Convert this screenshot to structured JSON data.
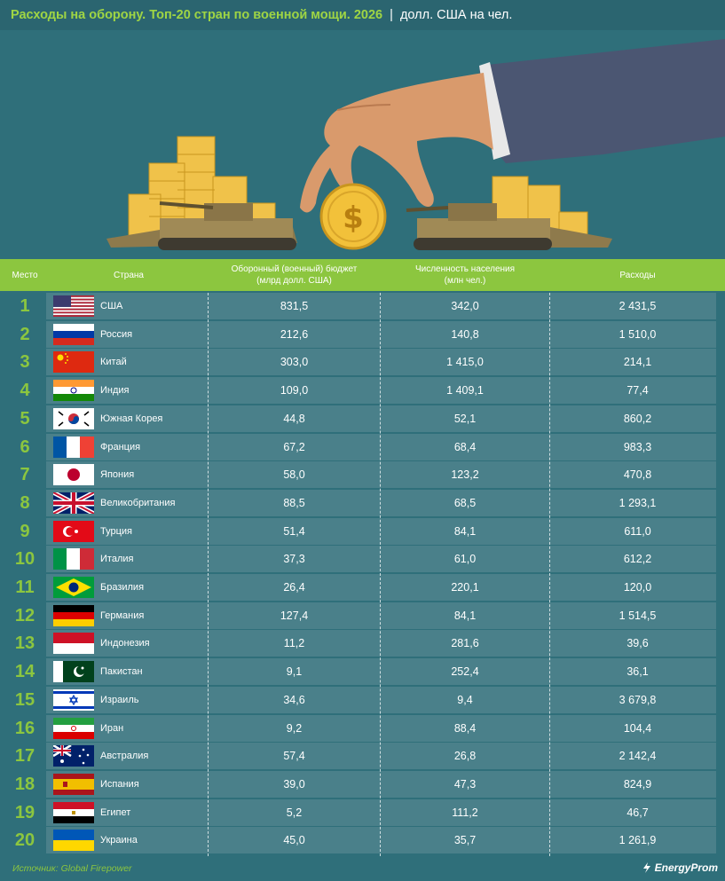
{
  "header": {
    "title": "Расходы на оборону. Топ-20 стран по военной мощи. 2026",
    "separator": "|",
    "unit": "долл. США на чел."
  },
  "columns": {
    "rank": "Место",
    "country": "Страна",
    "budget_line1": "Оборонный (военный) бюджет",
    "budget_line2": "(млрд долл. США)",
    "population_line1": "Численность населения",
    "population_line2": "(млн чел.)",
    "spending": "Расходы"
  },
  "colors": {
    "accent_green": "#8cc63f",
    "row_bg": "#4a808a",
    "page_bg": "#2f6f7a"
  },
  "chart_data": {
    "type": "table",
    "title": "Расходы на оборону. Топ-20 стран по военной мощи. 2026",
    "rows": [
      {
        "rank": "1",
        "flag": "us",
        "country": "США",
        "budget": "831,5",
        "population": "342,0",
        "spending": "2 431,5"
      },
      {
        "rank": "2",
        "flag": "ru",
        "country": "Россия",
        "budget": "212,6",
        "population": "140,8",
        "spending": "1 510,0"
      },
      {
        "rank": "3",
        "flag": "cn",
        "country": "Китай",
        "budget": "303,0",
        "population": "1 415,0",
        "spending": "214,1"
      },
      {
        "rank": "4",
        "flag": "in",
        "country": "Индия",
        "budget": "109,0",
        "population": "1 409,1",
        "spending": "77,4"
      },
      {
        "rank": "5",
        "flag": "kr",
        "country": "Южная Корея",
        "budget": "44,8",
        "population": "52,1",
        "spending": "860,2"
      },
      {
        "rank": "6",
        "flag": "fr",
        "country": "Франция",
        "budget": "67,2",
        "population": "68,4",
        "spending": "983,3"
      },
      {
        "rank": "7",
        "flag": "jp",
        "country": "Япония",
        "budget": "58,0",
        "population": "123,2",
        "spending": "470,8"
      },
      {
        "rank": "8",
        "flag": "gb",
        "country": "Великобритания",
        "budget": "88,5",
        "population": "68,5",
        "spending": "1 293,1"
      },
      {
        "rank": "9",
        "flag": "tr",
        "country": "Турция",
        "budget": "51,4",
        "population": "84,1",
        "spending": "611,0"
      },
      {
        "rank": "10",
        "flag": "it",
        "country": "Италия",
        "budget": "37,3",
        "population": "61,0",
        "spending": "612,2"
      },
      {
        "rank": "11",
        "flag": "br",
        "country": "Бразилия",
        "budget": "26,4",
        "population": "220,1",
        "spending": "120,0"
      },
      {
        "rank": "12",
        "flag": "de",
        "country": "Германия",
        "budget": "127,4",
        "population": "84,1",
        "spending": "1 514,5"
      },
      {
        "rank": "13",
        "flag": "id",
        "country": "Индонезия",
        "budget": "11,2",
        "population": "281,6",
        "spending": "39,6"
      },
      {
        "rank": "14",
        "flag": "pk",
        "country": "Пакистан",
        "budget": "9,1",
        "population": "252,4",
        "spending": "36,1"
      },
      {
        "rank": "15",
        "flag": "il",
        "country": "Израиль",
        "budget": "34,6",
        "population": "9,4",
        "spending": "3 679,8"
      },
      {
        "rank": "16",
        "flag": "ir",
        "country": "Иран",
        "budget": "9,2",
        "population": "88,4",
        "spending": "104,4"
      },
      {
        "rank": "17",
        "flag": "au",
        "country": "Австралия",
        "budget": "57,4",
        "population": "26,8",
        "spending": "2 142,4"
      },
      {
        "rank": "18",
        "flag": "es",
        "country": "Испания",
        "budget": "39,0",
        "population": "47,3",
        "spending": "824,9"
      },
      {
        "rank": "19",
        "flag": "eg",
        "country": "Египет",
        "budget": "5,2",
        "population": "111,2",
        "spending": "46,7"
      },
      {
        "rank": "20",
        "flag": "ua",
        "country": "Украина",
        "budget": "45,0",
        "population": "35,7",
        "spending": "1 261,9"
      }
    ]
  },
  "footer": {
    "source": "Источник: Global Firepower",
    "brand": "EnergyProm"
  }
}
